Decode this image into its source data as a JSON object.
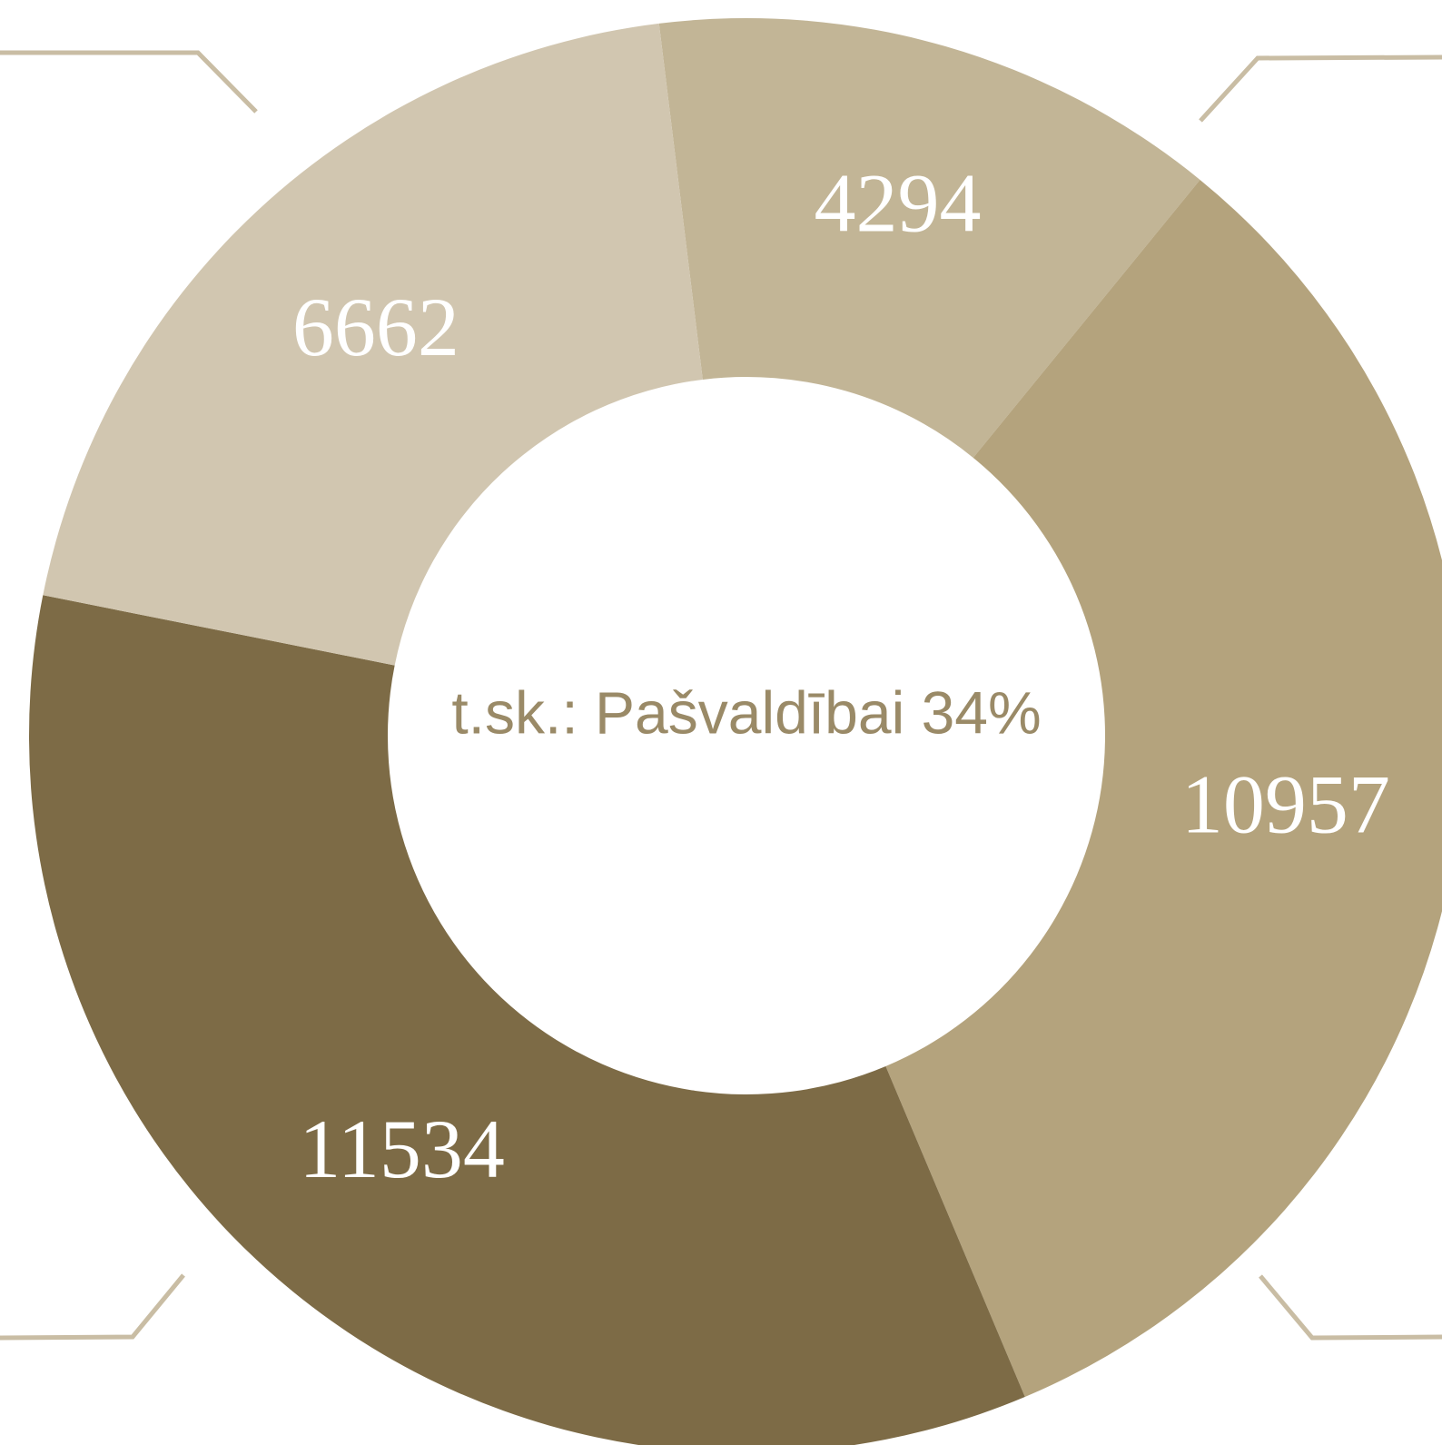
{
  "chart_data": {
    "type": "donut",
    "values": [
      4294,
      10957,
      11534,
      6662
    ],
    "colors": [
      "#c2b596",
      "#b4a37d",
      "#7d6b46",
      "#d1c6b0"
    ],
    "center_text": "t.sk.: Pašvaldībai 34%"
  }
}
